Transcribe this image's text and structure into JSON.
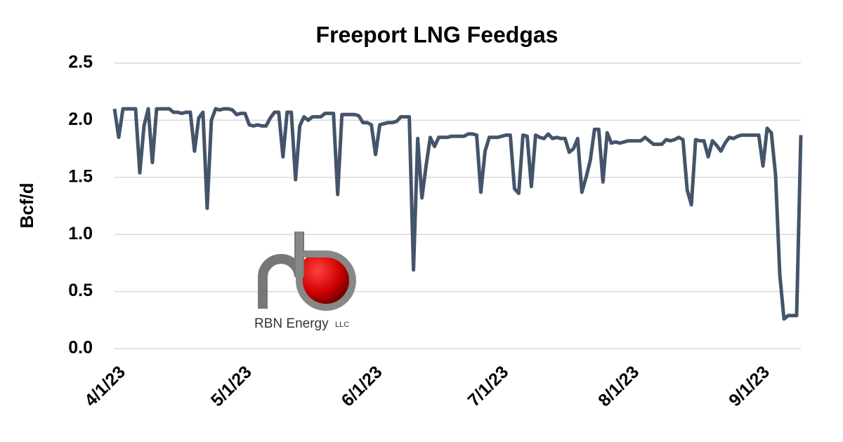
{
  "chart_data": {
    "type": "line",
    "title": "Freeport LNG Feedgas",
    "ylabel": "Bcf/d",
    "logo": {
      "name": "RBN Energy",
      "suffix": "LLC"
    },
    "x": [
      "4/1/23",
      "4/2/23",
      "4/3/23",
      "4/4/23",
      "4/5/23",
      "4/6/23",
      "4/7/23",
      "4/8/23",
      "4/9/23",
      "4/10/23",
      "4/11/23",
      "4/12/23",
      "4/13/23",
      "4/14/23",
      "4/15/23",
      "4/16/23",
      "4/17/23",
      "4/18/23",
      "4/19/23",
      "4/20/23",
      "4/21/23",
      "4/22/23",
      "4/23/23",
      "4/24/23",
      "4/25/23",
      "4/26/23",
      "4/27/23",
      "4/28/23",
      "4/29/23",
      "4/30/23",
      "5/1/23",
      "5/2/23",
      "5/3/23",
      "5/4/23",
      "5/5/23",
      "5/6/23",
      "5/7/23",
      "5/8/23",
      "5/9/23",
      "5/10/23",
      "5/11/23",
      "5/12/23",
      "5/13/23",
      "5/14/23",
      "5/15/23",
      "5/16/23",
      "5/17/23",
      "5/18/23",
      "5/19/23",
      "5/20/23",
      "5/21/23",
      "5/22/23",
      "5/23/23",
      "5/24/23",
      "5/25/23",
      "5/26/23",
      "5/27/23",
      "5/28/23",
      "5/29/23",
      "5/30/23",
      "5/31/23",
      "6/1/23",
      "6/2/23",
      "6/3/23",
      "6/4/23",
      "6/5/23",
      "6/6/23",
      "6/7/23",
      "6/8/23",
      "6/9/23",
      "6/10/23",
      "6/11/23",
      "6/12/23",
      "6/13/23",
      "6/14/23",
      "6/15/23",
      "6/16/23",
      "6/17/23",
      "6/18/23",
      "6/19/23",
      "6/20/23",
      "6/21/23",
      "6/22/23",
      "6/23/23",
      "6/24/23",
      "6/25/23",
      "6/26/23",
      "6/27/23",
      "6/28/23",
      "6/29/23",
      "6/30/23",
      "7/1/23",
      "7/2/23",
      "7/3/23",
      "7/4/23",
      "7/5/23",
      "7/6/23",
      "7/7/23",
      "7/8/23",
      "7/9/23",
      "7/10/23",
      "7/11/23",
      "7/12/23",
      "7/13/23",
      "7/14/23",
      "7/15/23",
      "7/16/23",
      "7/17/23",
      "7/18/23",
      "7/19/23",
      "7/20/23",
      "7/21/23",
      "7/22/23",
      "7/23/23",
      "7/24/23",
      "7/25/23",
      "7/26/23",
      "7/27/23",
      "7/28/23",
      "7/29/23",
      "7/30/23",
      "7/31/23",
      "8/1/23",
      "8/2/23",
      "8/3/23",
      "8/4/23",
      "8/5/23",
      "8/6/23",
      "8/7/23",
      "8/8/23",
      "8/9/23",
      "8/10/23",
      "8/11/23",
      "8/12/23",
      "8/13/23",
      "8/14/23",
      "8/15/23",
      "8/16/23",
      "8/17/23",
      "8/18/23",
      "8/19/23",
      "8/20/23",
      "8/21/23",
      "8/22/23",
      "8/23/23",
      "8/24/23",
      "8/25/23",
      "8/26/23",
      "8/27/23",
      "8/28/23",
      "8/29/23",
      "8/30/23",
      "8/31/23",
      "9/1/23",
      "9/2/23",
      "9/3/23",
      "9/4/23",
      "9/5/23",
      "9/6/23",
      "9/7/23",
      "9/8/23",
      "9/9/23",
      "9/10/23",
      "9/11/23"
    ],
    "series": [
      {
        "name": "Feedgas",
        "color": "#44546a",
        "values": [
          2.1,
          1.85,
          2.1,
          2.1,
          2.1,
          2.1,
          1.54,
          1.95,
          2.1,
          1.63,
          2.1,
          2.1,
          2.1,
          2.1,
          2.07,
          2.07,
          2.06,
          2.07,
          2.07,
          1.73,
          2.02,
          2.07,
          1.23,
          2.0,
          2.1,
          2.09,
          2.1,
          2.1,
          2.09,
          2.05,
          2.06,
          2.06,
          1.96,
          1.95,
          1.96,
          1.95,
          1.95,
          2.02,
          2.07,
          2.07,
          1.68,
          2.07,
          2.07,
          1.48,
          1.95,
          2.03,
          2.0,
          2.03,
          2.03,
          2.03,
          2.06,
          2.06,
          2.06,
          1.35,
          2.05,
          2.05,
          2.05,
          2.05,
          2.04,
          1.98,
          1.98,
          1.96,
          1.7,
          1.96,
          1.97,
          1.98,
          1.98,
          1.99,
          2.03,
          2.03,
          2.03,
          0.69,
          1.84,
          1.32,
          1.6,
          1.85,
          1.77,
          1.85,
          1.85,
          1.85,
          1.86,
          1.86,
          1.86,
          1.86,
          1.88,
          1.88,
          1.87,
          1.37,
          1.73,
          1.85,
          1.85,
          1.85,
          1.86,
          1.87,
          1.87,
          1.4,
          1.36,
          1.87,
          1.86,
          1.42,
          1.87,
          1.85,
          1.84,
          1.88,
          1.84,
          1.85,
          1.84,
          1.84,
          1.72,
          1.75,
          1.84,
          1.37,
          1.5,
          1.65,
          1.92,
          1.92,
          1.46,
          1.89,
          1.8,
          1.81,
          1.8,
          1.81,
          1.82,
          1.82,
          1.82,
          1.82,
          1.85,
          1.82,
          1.79,
          1.79,
          1.79,
          1.83,
          1.82,
          1.83,
          1.85,
          1.83,
          1.39,
          1.26,
          1.83,
          1.82,
          1.82,
          1.68,
          1.82,
          1.78,
          1.73,
          1.8,
          1.85,
          1.84,
          1.86,
          1.87,
          1.87,
          1.87,
          1.87,
          1.87,
          1.6,
          1.93,
          1.89,
          1.52,
          0.65,
          0.26,
          0.29,
          0.29,
          0.29,
          1.87
        ]
      }
    ],
    "xticks": [
      "4/1/23",
      "5/1/23",
      "6/1/23",
      "7/1/23",
      "8/1/23",
      "9/1/23"
    ],
    "ylim": [
      0,
      2.5
    ],
    "yticks": [
      {
        "value": 0,
        "label": "0.0"
      },
      0.5,
      {
        "value": 1,
        "label": "1.0"
      },
      1.5,
      {
        "value": 2,
        "label": "2.0"
      },
      2.5
    ],
    "grid": true
  }
}
